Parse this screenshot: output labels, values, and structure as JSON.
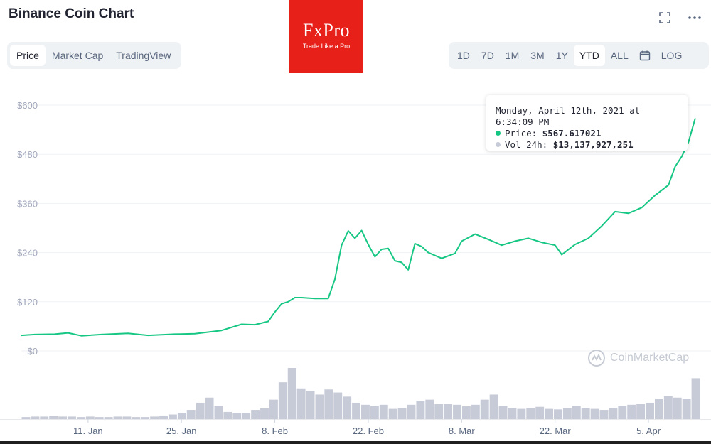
{
  "title": "Binance Coin Chart",
  "ad": {
    "brand": "FxPro",
    "tagline": "Trade Like a Pro"
  },
  "tabs": [
    {
      "label": "Price",
      "active": true
    },
    {
      "label": "Market Cap",
      "active": false
    },
    {
      "label": "TradingView",
      "active": false
    }
  ],
  "ranges": [
    {
      "label": "1D",
      "active": false
    },
    {
      "label": "7D",
      "active": false
    },
    {
      "label": "1M",
      "active": false
    },
    {
      "label": "3M",
      "active": false
    },
    {
      "label": "1Y",
      "active": false
    },
    {
      "label": "YTD",
      "active": true
    },
    {
      "label": "ALL",
      "active": false
    }
  ],
  "log_label": "LOG",
  "icons": [
    "fullscreen-icon",
    "more-icon",
    "calendar-icon"
  ],
  "tooltip": {
    "date": "Monday, April 12th, 2021 at 6:34:09 PM",
    "price_label": "Price:",
    "price_value": "$567.617021",
    "vol_label": "Vol 24h:",
    "vol_value": "$13,137,927,251"
  },
  "watermark": "CoinMarketCap",
  "colors": {
    "line": "#16c784",
    "volume": "#c7cbd8",
    "grid": "#eff2f5",
    "text_muted": "#a1a7bb",
    "ad": "#e7211a"
  },
  "chart_data": {
    "type": "line",
    "ylabel_ticks": [
      "$0",
      "$120",
      "$240",
      "$360",
      "$480",
      "$600"
    ],
    "y_ticks": [
      0,
      120,
      240,
      360,
      480,
      600
    ],
    "ylim": [
      0,
      600
    ],
    "xlim": [
      "2021-01-01",
      "2021-04-12"
    ],
    "x_tick_labels": [
      "11. Jan",
      "25. Jan",
      "8. Feb",
      "22. Feb",
      "8. Mar",
      "22. Mar",
      "5. Apr"
    ],
    "x_tick_dates": [
      "2021-01-11",
      "2021-01-25",
      "2021-02-08",
      "2021-02-22",
      "2021-03-08",
      "2021-03-22",
      "2021-04-05"
    ],
    "grid": true,
    "series": [
      {
        "kind": "price",
        "x": [
          "2021-01-01",
          "2021-01-03",
          "2021-01-06",
          "2021-01-08",
          "2021-01-10",
          "2021-01-13",
          "2021-01-17",
          "2021-01-20",
          "2021-01-24",
          "2021-01-27",
          "2021-01-31",
          "2021-02-03",
          "2021-02-05",
          "2021-02-07",
          "2021-02-08",
          "2021-02-09",
          "2021-02-10",
          "2021-02-11",
          "2021-02-12",
          "2021-02-14",
          "2021-02-16",
          "2021-02-17",
          "2021-02-18",
          "2021-02-19",
          "2021-02-20",
          "2021-02-21",
          "2021-02-22",
          "2021-02-23",
          "2021-02-24",
          "2021-02-25",
          "2021-02-26",
          "2021-02-27",
          "2021-02-28",
          "2021-03-01",
          "2021-03-02",
          "2021-03-03",
          "2021-03-05",
          "2021-03-07",
          "2021-03-08",
          "2021-03-10",
          "2021-03-12",
          "2021-03-14",
          "2021-03-16",
          "2021-03-18",
          "2021-03-20",
          "2021-03-22",
          "2021-03-23",
          "2021-03-25",
          "2021-03-27",
          "2021-03-29",
          "2021-03-31",
          "2021-04-02",
          "2021-04-04",
          "2021-04-06",
          "2021-04-08",
          "2021-04-09",
          "2021-04-10",
          "2021-04-11",
          "2021-04-12"
        ],
        "y": [
          38,
          40,
          41,
          44,
          37,
          40,
          43,
          38,
          41,
          42,
          50,
          65,
          64,
          72,
          95,
          115,
          120,
          130,
          130,
          128,
          128,
          175,
          258,
          293,
          275,
          294,
          260,
          230,
          248,
          250,
          220,
          216,
          198,
          262,
          255,
          240,
          226,
          238,
          268,
          285,
          272,
          258,
          268,
          275,
          265,
          258,
          235,
          260,
          275,
          305,
          340,
          336,
          350,
          380,
          405,
          450,
          475,
          510,
          567
        ]
      }
    ],
    "volume_relative": [
      0.04,
      0.05,
      0.05,
      0.06,
      0.05,
      0.05,
      0.04,
      0.05,
      0.04,
      0.04,
      0.05,
      0.05,
      0.04,
      0.04,
      0.05,
      0.07,
      0.09,
      0.12,
      0.18,
      0.32,
      0.42,
      0.25,
      0.14,
      0.12,
      0.12,
      0.18,
      0.21,
      0.38,
      0.72,
      1.0,
      0.6,
      0.55,
      0.48,
      0.58,
      0.52,
      0.44,
      0.32,
      0.28,
      0.26,
      0.28,
      0.2,
      0.22,
      0.28,
      0.36,
      0.38,
      0.3,
      0.3,
      0.28,
      0.25,
      0.28,
      0.38,
      0.48,
      0.26,
      0.22,
      0.2,
      0.22,
      0.24,
      0.2,
      0.19,
      0.22,
      0.26,
      0.22,
      0.2,
      0.18,
      0.22,
      0.26,
      0.28,
      0.3,
      0.32,
      0.4,
      0.45,
      0.42,
      0.4,
      0.8
    ]
  }
}
